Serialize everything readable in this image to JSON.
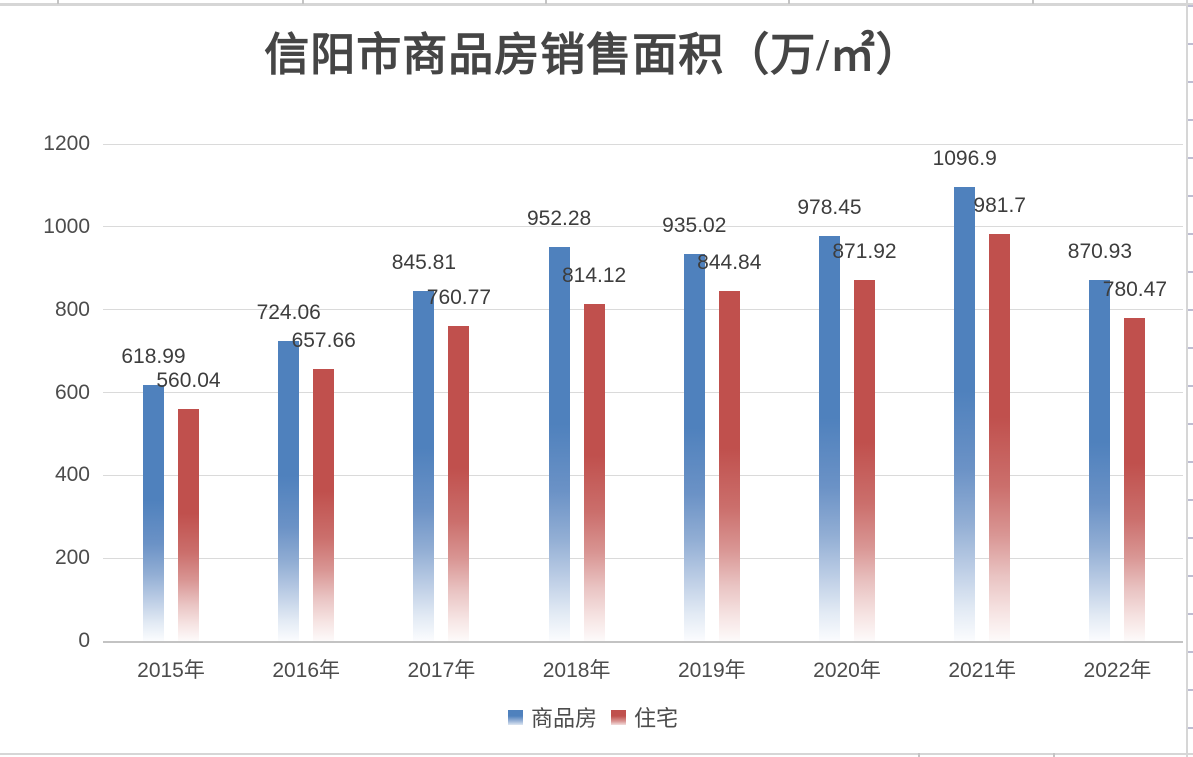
{
  "chart_data": {
    "type": "bar",
    "title": "信阳市商品房销售面积（万/㎡）",
    "categories": [
      "2015年",
      "2016年",
      "2017年",
      "2018年",
      "2019年",
      "2020年",
      "2021年",
      "2022年"
    ],
    "series": [
      {
        "name": "商品房",
        "color": "#4f81bd",
        "values": [
          618.99,
          724.06,
          845.81,
          952.28,
          935.02,
          978.45,
          1096.9,
          870.93
        ]
      },
      {
        "name": "住宅",
        "color": "#c0504d",
        "values": [
          560.04,
          657.66,
          760.77,
          814.12,
          844.84,
          871.92,
          981.7,
          780.47
        ]
      }
    ],
    "data_labels": {
      "series_商品房": [
        "618.99",
        "724.06",
        "845.81",
        "952.28",
        "935.02",
        "978.45",
        "1096.9",
        "870.93"
      ],
      "series_住宅": [
        "560.04",
        "657.66",
        "760.77",
        "814.12",
        "844.84",
        "871.92",
        "981.7",
        "780.47"
      ]
    },
    "y_axis": {
      "min": 0,
      "max": 1200,
      "step": 200,
      "ticks": [
        "0",
        "200",
        "400",
        "600",
        "800",
        "1000",
        "1200"
      ]
    },
    "x_axis_label": "",
    "ylabel": "",
    "grid": true,
    "legend_position": "bottom"
  }
}
